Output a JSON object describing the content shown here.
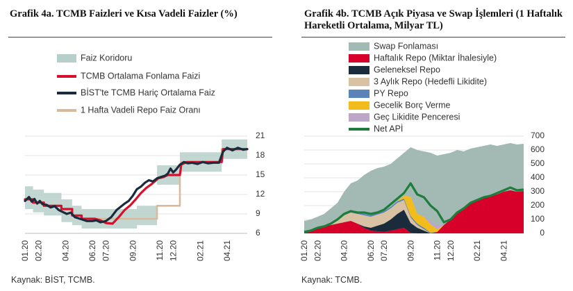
{
  "charts": {
    "left": {
      "title": "Grafik 4a. TCMB Faizleri ve Kısa Vadeli Faizler (%)",
      "source": "Kaynak: BİST, TCMB.",
      "colors": {
        "corridor": "#b7cfca",
        "tcmb": "#d6102c",
        "bist": "#1a2b3c",
        "repo": "#d9b99b"
      }
    },
    "right": {
      "title": "Grafik 4b. TCMB Açık Piyasa ve Swap İşlemleri (1 Haftalık Hareketli Ortalama, Milyar TL)",
      "source": "Kaynak: TCMB.",
      "colors": {
        "swap": "#a3b9b3",
        "haftalik": "#d6002a",
        "geleneksel": "#1a2b3c",
        "uc_aylik": "#d9c1a3",
        "py": "#5a84b8",
        "gecelik": "#f2bd1c",
        "gec_likidite": "#bda7c9",
        "net": "#1e7d3c"
      }
    }
  },
  "chart_data": [
    {
      "type": "line",
      "title": "Grafik 4a. TCMB Faizleri ve Kısa Vadeli Faizler (%)",
      "x_tick_labels": [
        "01.20",
        "02.20",
        "04.20",
        "06.20",
        "07.20",
        "09.20",
        "11.20",
        "12.20",
        "02.21",
        "04.21"
      ],
      "x_tick_months": [
        0,
        1,
        3,
        5,
        6,
        8,
        10,
        11,
        13,
        15
      ],
      "x_range_months": [
        0,
        16.5
      ],
      "y_range": [
        6,
        21
      ],
      "y_ticks": [
        6,
        9,
        12,
        15,
        18,
        21
      ],
      "y_axis_side": "right",
      "legend_position": "top-left",
      "series": [
        {
          "name": "Faiz Koridoru",
          "kind": "band",
          "points": [
            [
              0,
              9.75,
              13.25
            ],
            [
              0.6,
              9.75,
              13.25
            ],
            [
              0.6,
              9.25,
              12.75
            ],
            [
              1.4,
              9.25,
              12.75
            ],
            [
              1.4,
              8.75,
              12.25
            ],
            [
              2.7,
              8.75,
              12.25
            ],
            [
              2.7,
              7.75,
              11.25
            ],
            [
              3.5,
              7.75,
              11.25
            ],
            [
              3.5,
              7.25,
              10.25
            ],
            [
              4.2,
              7.25,
              10.25
            ],
            [
              4.2,
              6.75,
              9.75
            ],
            [
              5.6,
              6.75,
              9.75
            ],
            [
              5.6,
              6.75,
              9.75
            ],
            [
              8.3,
              6.75,
              9.75
            ],
            [
              8.3,
              7.25,
              10.25
            ],
            [
              9.8,
              7.25,
              10.25
            ],
            [
              9.8,
              13.5,
              16.5
            ],
            [
              11.5,
              13.5,
              16.5
            ],
            [
              11.5,
              15.5,
              18.5
            ],
            [
              14.6,
              15.5,
              18.5
            ],
            [
              14.6,
              17.5,
              20.5
            ],
            [
              16.5,
              17.5,
              20.5
            ]
          ]
        },
        {
          "name": "TCMB Ortalama Fonlama Faizi",
          "points": [
            [
              0,
              11.25
            ],
            [
              0.6,
              11.25
            ],
            [
              0.6,
              10.75
            ],
            [
              1.4,
              10.75
            ],
            [
              1.4,
              10.25
            ],
            [
              2.7,
              10.25
            ],
            [
              2.7,
              9.75
            ],
            [
              3.5,
              9.75
            ],
            [
              3.5,
              8.75
            ],
            [
              4.2,
              8.75
            ],
            [
              4.2,
              8.25
            ],
            [
              5.2,
              8.25
            ],
            [
              5.6,
              8.0
            ],
            [
              6.0,
              7.6
            ],
            [
              6.5,
              7.5
            ],
            [
              7.0,
              8.6
            ],
            [
              7.4,
              9.6
            ],
            [
              7.8,
              10.3
            ],
            [
              8.2,
              11.2
            ],
            [
              8.6,
              12.2
            ],
            [
              9.0,
              13.0
            ],
            [
              9.4,
              13.6
            ],
            [
              9.9,
              14.5
            ],
            [
              10.3,
              14.7
            ],
            [
              10.6,
              15.0
            ],
            [
              11.0,
              15.0
            ],
            [
              11.5,
              15.0
            ],
            [
              11.6,
              16.6
            ],
            [
              12.0,
              17.0
            ],
            [
              13.0,
              17.0
            ],
            [
              14.0,
              17.0
            ],
            [
              14.6,
              17.0
            ],
            [
              14.7,
              19.0
            ],
            [
              15.5,
              19.0
            ],
            [
              16.5,
              19.0
            ]
          ]
        },
        {
          "name": "BİST'te TCMB Hariç Ortalama Faiz",
          "points": [
            [
              0,
              11.0
            ],
            [
              0.3,
              11.6
            ],
            [
              0.5,
              10.9
            ],
            [
              0.7,
              11.3
            ],
            [
              0.9,
              10.6
            ],
            [
              1.1,
              11.0
            ],
            [
              1.3,
              10.5
            ],
            [
              1.6,
              10.4
            ],
            [
              1.9,
              10.0
            ],
            [
              2.2,
              10.2
            ],
            [
              2.5,
              9.6
            ],
            [
              2.8,
              9.3
            ],
            [
              3.1,
              9.0
            ],
            [
              3.4,
              9.2
            ],
            [
              3.7,
              8.5
            ],
            [
              4.0,
              8.3
            ],
            [
              4.3,
              8.1
            ],
            [
              4.6,
              7.9
            ],
            [
              5.0,
              7.9
            ],
            [
              5.3,
              8.0
            ],
            [
              5.6,
              7.7
            ],
            [
              6.0,
              7.9
            ],
            [
              6.4,
              8.5
            ],
            [
              6.8,
              9.6
            ],
            [
              7.1,
              10.1
            ],
            [
              7.4,
              10.6
            ],
            [
              7.7,
              11.0
            ],
            [
              8.0,
              11.8
            ],
            [
              8.3,
              12.8
            ],
            [
              8.6,
              13.2
            ],
            [
              8.9,
              13.8
            ],
            [
              9.2,
              14.2
            ],
            [
              9.5,
              14.0
            ],
            [
              9.8,
              14.5
            ],
            [
              10.1,
              14.7
            ],
            [
              10.4,
              14.9
            ],
            [
              10.6,
              15.2
            ],
            [
              10.8,
              16.0
            ],
            [
              11.0,
              15.4
            ],
            [
              11.2,
              15.8
            ],
            [
              11.5,
              16.6
            ],
            [
              11.8,
              17.0
            ],
            [
              12.1,
              16.8
            ],
            [
              12.4,
              16.9
            ],
            [
              12.8,
              16.7
            ],
            [
              13.2,
              17.0
            ],
            [
              13.6,
              16.8
            ],
            [
              14.0,
              16.9
            ],
            [
              14.4,
              16.9
            ],
            [
              14.7,
              18.6
            ],
            [
              15.0,
              19.2
            ],
            [
              15.4,
              18.8
            ],
            [
              15.8,
              19.2
            ],
            [
              16.2,
              18.9
            ],
            [
              16.5,
              19.0
            ]
          ]
        },
        {
          "name": "1 Hafta Vadeli Repo Faiz Oranı",
          "points": [
            [
              0,
              11.25
            ],
            [
              0.6,
              11.25
            ],
            [
              0.6,
              10.75
            ],
            [
              1.4,
              10.75
            ],
            [
              1.4,
              10.25
            ],
            [
              2.7,
              10.25
            ],
            [
              2.7,
              9.75
            ],
            [
              3.5,
              9.75
            ],
            [
              3.5,
              8.75
            ],
            [
              4.2,
              8.75
            ],
            [
              4.2,
              8.25
            ],
            [
              9.8,
              8.25
            ],
            [
              9.8,
              10.25
            ],
            [
              11.5,
              10.25
            ],
            [
              11.5,
              15.0
            ],
            [
              11.6,
              17.0
            ],
            [
              14.6,
              17.0
            ],
            [
              14.6,
              19.0
            ],
            [
              16.5,
              19.0
            ]
          ]
        }
      ]
    },
    {
      "type": "area",
      "title": "Grafik 4b. TCMB Açık Piyasa ve Swap İşlemleri (1 Haftalık Hareketli Ortalama, Milyar TL)",
      "x_tick_labels": [
        "01.20",
        "02.20",
        "04.20",
        "06.20",
        "07.20",
        "09.20",
        "11.20",
        "12.20",
        "02.21",
        "04.21"
      ],
      "x_tick_months": [
        0,
        1,
        3,
        5,
        6,
        8,
        10,
        11,
        13,
        15
      ],
      "x_range_months": [
        0,
        16.5
      ],
      "y_range": [
        0,
        700
      ],
      "y_ticks": [
        0,
        100,
        200,
        300,
        400,
        500,
        600,
        700
      ],
      "y_axis_side": "right",
      "legend_position": "top-left",
      "x": [
        0,
        0.5,
        1,
        1.5,
        2,
        2.5,
        3,
        3.5,
        4,
        4.5,
        5,
        5.5,
        6,
        6.5,
        7,
        7.5,
        8,
        8.5,
        9,
        9.5,
        10,
        10.5,
        11,
        11.5,
        12,
        12.5,
        13,
        13.5,
        14,
        14.5,
        15,
        15.5,
        16,
        16.5
      ],
      "stack_series": [
        {
          "name": "Haftalık Repo (Miktar İhalesiyle)",
          "color_key": "haftalik",
          "values": [
            10,
            20,
            40,
            50,
            60,
            70,
            80,
            90,
            70,
            40,
            20,
            15,
            10,
            20,
            30,
            40,
            5,
            0,
            0,
            0,
            10,
            60,
            100,
            150,
            180,
            220,
            240,
            260,
            270,
            280,
            300,
            310,
            300,
            305
          ]
        },
        {
          "name": "Geleneksel Repo",
          "color_key": "geleneksel",
          "values": [
            0,
            0,
            0,
            0,
            0,
            0,
            0,
            0,
            0,
            10,
            20,
            40,
            60,
            80,
            110,
            130,
            70,
            40,
            20,
            0,
            0,
            0,
            0,
            0,
            0,
            0,
            0,
            0,
            0,
            0,
            0,
            0,
            0,
            0
          ]
        },
        {
          "name": "3 Aylık Repo (Hedefli Likidite)",
          "color_key": "uc_aylik",
          "values": [
            0,
            0,
            0,
            0,
            10,
            30,
            50,
            60,
            70,
            80,
            80,
            80,
            80,
            80,
            80,
            70,
            40,
            20,
            10,
            0,
            0,
            0,
            0,
            0,
            0,
            0,
            0,
            0,
            0,
            0,
            0,
            0,
            0,
            0
          ]
        },
        {
          "name": "PY Repo",
          "color_key": "py",
          "values": [
            0,
            0,
            0,
            0,
            0,
            0,
            5,
            10,
            10,
            10,
            10,
            10,
            10,
            10,
            10,
            10,
            10,
            10,
            10,
            5,
            0,
            0,
            0,
            0,
            0,
            0,
            0,
            0,
            0,
            0,
            0,
            0,
            0,
            0
          ]
        },
        {
          "name": "Gecelik Borç Verme",
          "color_key": "gecelik",
          "values": [
            0,
            0,
            0,
            0,
            0,
            0,
            0,
            0,
            0,
            0,
            0,
            0,
            0,
            0,
            0,
            20,
            140,
            70,
            80,
            60,
            20,
            0,
            0,
            0,
            0,
            0,
            0,
            0,
            0,
            0,
            0,
            0,
            0,
            0
          ]
        },
        {
          "name": "Geç Likidite Penceresi",
          "color_key": "gec_likidite",
          "values": [
            0,
            0,
            0,
            0,
            0,
            0,
            0,
            0,
            0,
            0,
            0,
            0,
            0,
            0,
            0,
            0,
            0,
            0,
            5,
            20,
            30,
            0,
            0,
            0,
            0,
            0,
            0,
            0,
            0,
            0,
            0,
            0,
            0,
            0
          ]
        }
      ],
      "area_series": {
        "name": "Swap Fonlaması",
        "color_key": "swap",
        "values": [
          90,
          100,
          120,
          140,
          180,
          220,
          300,
          360,
          380,
          420,
          450,
          470,
          480,
          500,
          540,
          580,
          620,
          600,
          590,
          580,
          560,
          570,
          580,
          600,
          590,
          610,
          620,
          630,
          640,
          630,
          640,
          650,
          640,
          645
        ]
      },
      "line_series": {
        "name": "Net APİ",
        "color_key": "net",
        "values": [
          10,
          20,
          40,
          50,
          70,
          100,
          140,
          160,
          150,
          150,
          140,
          150,
          170,
          210,
          250,
          290,
          360,
          280,
          260,
          200,
          160,
          80,
          100,
          150,
          180,
          220,
          240,
          260,
          270,
          290,
          310,
          330,
          310,
          315
        ]
      }
    }
  ]
}
